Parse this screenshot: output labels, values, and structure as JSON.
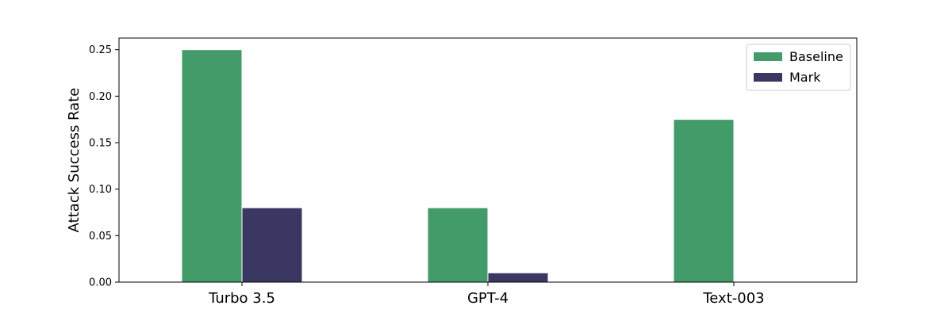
{
  "chart_data": {
    "type": "bar",
    "title": "",
    "xlabel": "",
    "ylabel": "Attack Success Rate",
    "categories": [
      "Turbo 3.5",
      "GPT-4",
      "Text-003"
    ],
    "series": [
      {
        "name": "Baseline",
        "values": [
          0.25,
          0.08,
          0.175
        ],
        "color": "#429b69"
      },
      {
        "name": "Mark",
        "values": [
          0.08,
          0.01,
          0.0
        ],
        "color": "#3a3862"
      }
    ],
    "ylim": [
      0,
      0.2625
    ],
    "yticks": [
      0.0,
      0.05,
      0.1,
      0.15,
      0.2,
      0.25
    ],
    "ytick_labels": [
      "0.00",
      "0.05",
      "0.10",
      "0.15",
      "0.20",
      "0.25"
    ],
    "grid": false,
    "legend_position": "top-right"
  }
}
